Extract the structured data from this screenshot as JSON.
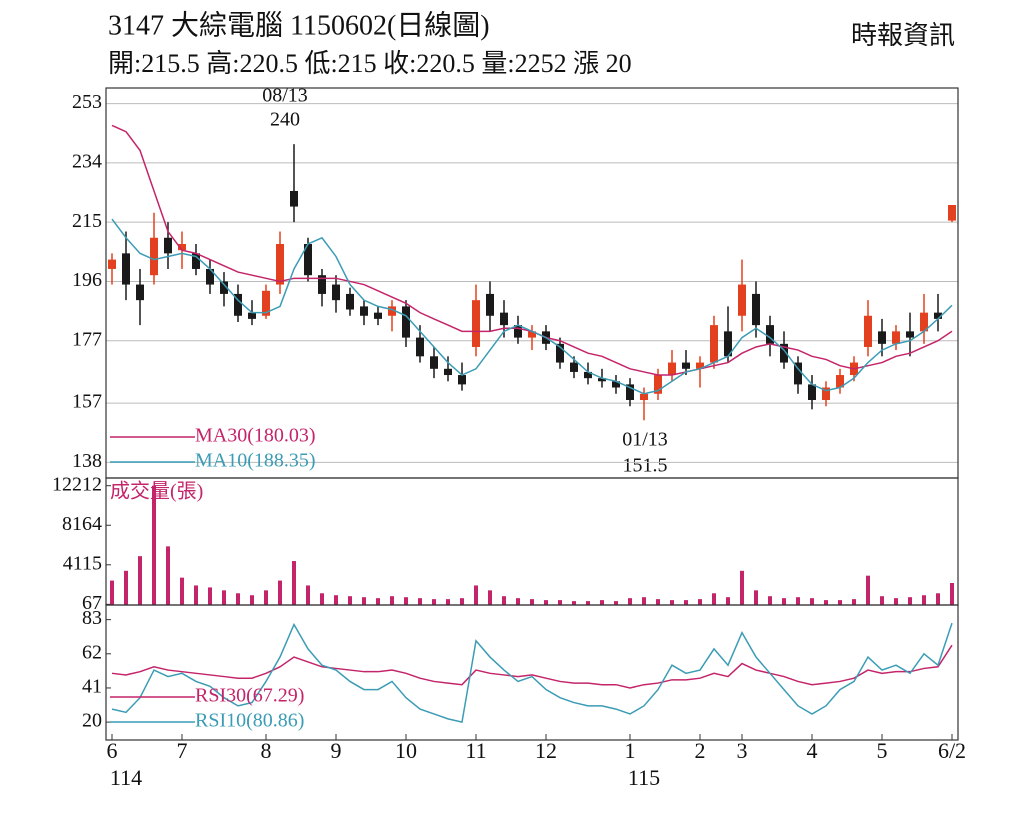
{
  "header": {
    "title": "3147  大綜電腦 1150602(日線圖)",
    "quote": "開:215.5 高:220.5 低:215 收:220.5 量:2252 漲 20",
    "source": "時報資訊"
  },
  "chart_data": [
    {
      "type": "candlestick",
      "categories": [
        "6",
        null,
        null,
        null,
        null,
        "7",
        null,
        null,
        null,
        null,
        null,
        "8",
        null,
        null,
        null,
        null,
        "9",
        null,
        null,
        null,
        null,
        "10",
        null,
        null,
        null,
        null,
        "11",
        null,
        null,
        null,
        null,
        "12",
        null,
        null,
        null,
        null,
        null,
        "1",
        null,
        null,
        null,
        null,
        "2",
        null,
        null,
        "3",
        null,
        null,
        null,
        null,
        "4",
        null,
        null,
        null,
        null,
        "5",
        null,
        null,
        null,
        null,
        "6/2"
      ],
      "sublabels": [
        "114",
        null,
        null,
        null,
        null,
        null,
        null,
        null,
        null,
        null,
        null,
        null,
        null,
        null,
        null,
        null,
        null,
        null,
        null,
        null,
        null,
        null,
        null,
        null,
        null,
        null,
        null,
        null,
        null,
        null,
        null,
        null,
        null,
        null,
        null,
        null,
        null,
        "115",
        null,
        null,
        null,
        null,
        null,
        null,
        null,
        null,
        null,
        null,
        null,
        null,
        null,
        null,
        null,
        null,
        null,
        null,
        null,
        null,
        null,
        null,
        null
      ],
      "open": [
        200,
        205,
        195,
        198,
        210,
        206,
        205,
        200,
        196,
        192,
        186,
        185,
        195,
        225,
        208,
        198,
        195,
        192,
        188,
        186,
        185,
        188,
        178,
        172,
        168,
        166,
        175,
        192,
        186,
        182,
        178,
        180,
        176,
        170,
        167,
        165,
        164,
        163,
        158,
        160,
        166,
        170,
        168,
        170,
        180,
        185,
        192,
        182,
        176,
        170,
        163,
        158,
        162,
        166,
        175,
        180,
        176,
        180,
        180,
        186,
        215.5
      ],
      "high": [
        205,
        212,
        200,
        218,
        215,
        212,
        208,
        203,
        199,
        195,
        190,
        195,
        212,
        240,
        210,
        200,
        198,
        194,
        190,
        188,
        190,
        190,
        182,
        175,
        172,
        170,
        195,
        196,
        190,
        185,
        182,
        182,
        178,
        172,
        170,
        168,
        166,
        165,
        162,
        168,
        174,
        174,
        172,
        185,
        188,
        203,
        196,
        185,
        180,
        172,
        166,
        164,
        168,
        172,
        190,
        184,
        182,
        186,
        192,
        192,
        220.5
      ],
      "low": [
        195,
        190,
        182,
        195,
        200,
        200,
        198,
        192,
        188,
        183,
        182,
        184,
        192,
        215,
        196,
        188,
        186,
        185,
        182,
        182,
        180,
        175,
        170,
        165,
        164,
        161,
        172,
        180,
        178,
        176,
        174,
        174,
        168,
        165,
        163,
        162,
        160,
        156,
        151.5,
        158,
        164,
        166,
        162,
        168,
        170,
        180,
        178,
        172,
        168,
        160,
        155,
        156,
        160,
        164,
        172,
        172,
        174,
        172,
        176,
        180,
        215
      ],
      "close": [
        203,
        195,
        190,
        210,
        205,
        208,
        200,
        195,
        192,
        185,
        184,
        193,
        208,
        220,
        198,
        192,
        190,
        187,
        185,
        184,
        188,
        178,
        172,
        168,
        166,
        163,
        190,
        185,
        182,
        178,
        180,
        176,
        170,
        167,
        165,
        164,
        162,
        158,
        160,
        166,
        170,
        168,
        170,
        182,
        172,
        195,
        182,
        176,
        170,
        163,
        158,
        162,
        166,
        170,
        185,
        176,
        180,
        178,
        186,
        184,
        220.5
      ],
      "up_color": "#e2401e",
      "down_color": "#1a1a1a",
      "series": [
        {
          "name": "MA30(180.03)",
          "color": "#c4246a",
          "values": [
            246,
            244,
            238,
            225,
            212,
            206,
            205,
            203,
            201,
            199,
            198,
            197,
            196,
            197,
            197,
            197,
            197,
            196,
            195,
            193,
            191,
            189,
            186,
            184,
            182,
            180,
            180,
            180,
            181,
            181,
            180,
            178,
            177,
            175,
            173,
            172,
            170,
            168,
            167,
            166,
            166,
            167,
            168,
            169,
            170,
            173,
            175,
            176,
            175,
            174,
            172,
            171,
            169,
            168,
            169,
            170,
            172,
            173,
            175,
            177,
            180.03
          ]
        },
        {
          "name": "MA10(188.35)",
          "color": "#3b9cb5",
          "values": [
            216,
            210,
            205,
            203,
            204,
            205,
            204,
            200,
            195,
            190,
            186,
            186,
            188,
            200,
            208,
            210,
            204,
            195,
            190,
            188,
            187,
            185,
            180,
            175,
            170,
            166,
            168,
            174,
            180,
            182,
            180,
            178,
            175,
            171,
            167,
            165,
            164,
            162,
            160,
            161,
            164,
            167,
            168,
            170,
            172,
            178,
            181,
            178,
            174,
            168,
            163,
            161,
            162,
            165,
            170,
            174,
            176,
            177,
            180,
            184,
            188.35
          ]
        }
      ],
      "ylim": [
        133,
        258
      ],
      "yticks": [
        138,
        157,
        177,
        196,
        215,
        234,
        253
      ],
      "grid": true,
      "annotations": [
        "08/13",
        "240",
        "01/13",
        "151.5"
      ]
    },
    {
      "type": "bar",
      "title": "成交量(張)",
      "color": "#c4246a",
      "values": [
        2500,
        3500,
        5000,
        12212,
        6000,
        2800,
        2000,
        1800,
        1500,
        1200,
        1000,
        1500,
        2500,
        4500,
        2000,
        1200,
        1000,
        900,
        800,
        700,
        900,
        800,
        700,
        600,
        600,
        700,
        2000,
        1500,
        900,
        700,
        600,
        500,
        500,
        400,
        400,
        500,
        400,
        700,
        800,
        600,
        500,
        500,
        600,
        1200,
        800,
        3500,
        1500,
        900,
        700,
        800,
        700,
        500,
        500,
        600,
        3000,
        900,
        700,
        800,
        1000,
        1200,
        2252
      ],
      "ylim": [
        0,
        13000
      ],
      "yticks": [
        67,
        4115,
        8164,
        12212
      ]
    },
    {
      "type": "line",
      "series": [
        {
          "name": "RSI30(67.29)",
          "color": "#c4246a",
          "values": [
            50,
            49,
            51,
            54,
            52,
            51,
            50,
            49,
            48,
            47,
            47,
            50,
            54,
            60,
            57,
            54,
            53,
            52,
            51,
            51,
            52,
            50,
            47,
            45,
            44,
            43,
            52,
            50,
            49,
            48,
            49,
            47,
            45,
            44,
            44,
            43,
            43,
            41,
            43,
            44,
            46,
            46,
            47,
            50,
            48,
            56,
            52,
            50,
            48,
            45,
            43,
            44,
            45,
            47,
            52,
            50,
            51,
            51,
            53,
            54,
            67.29
          ]
        },
        {
          "name": "RSI10(80.86)",
          "color": "#3b9cb5",
          "values": [
            28,
            26,
            35,
            52,
            48,
            50,
            45,
            42,
            35,
            30,
            32,
            45,
            60,
            80,
            65,
            55,
            52,
            45,
            40,
            40,
            45,
            35,
            28,
            25,
            22,
            20,
            70,
            60,
            52,
            45,
            48,
            40,
            35,
            32,
            30,
            30,
            28,
            25,
            30,
            40,
            55,
            50,
            52,
            65,
            55,
            75,
            60,
            50,
            40,
            30,
            25,
            30,
            40,
            45,
            60,
            52,
            55,
            50,
            62,
            55,
            80.86
          ]
        }
      ],
      "ylim": [
        9,
        92
      ],
      "yticks": [
        20,
        41,
        62,
        83
      ]
    }
  ]
}
